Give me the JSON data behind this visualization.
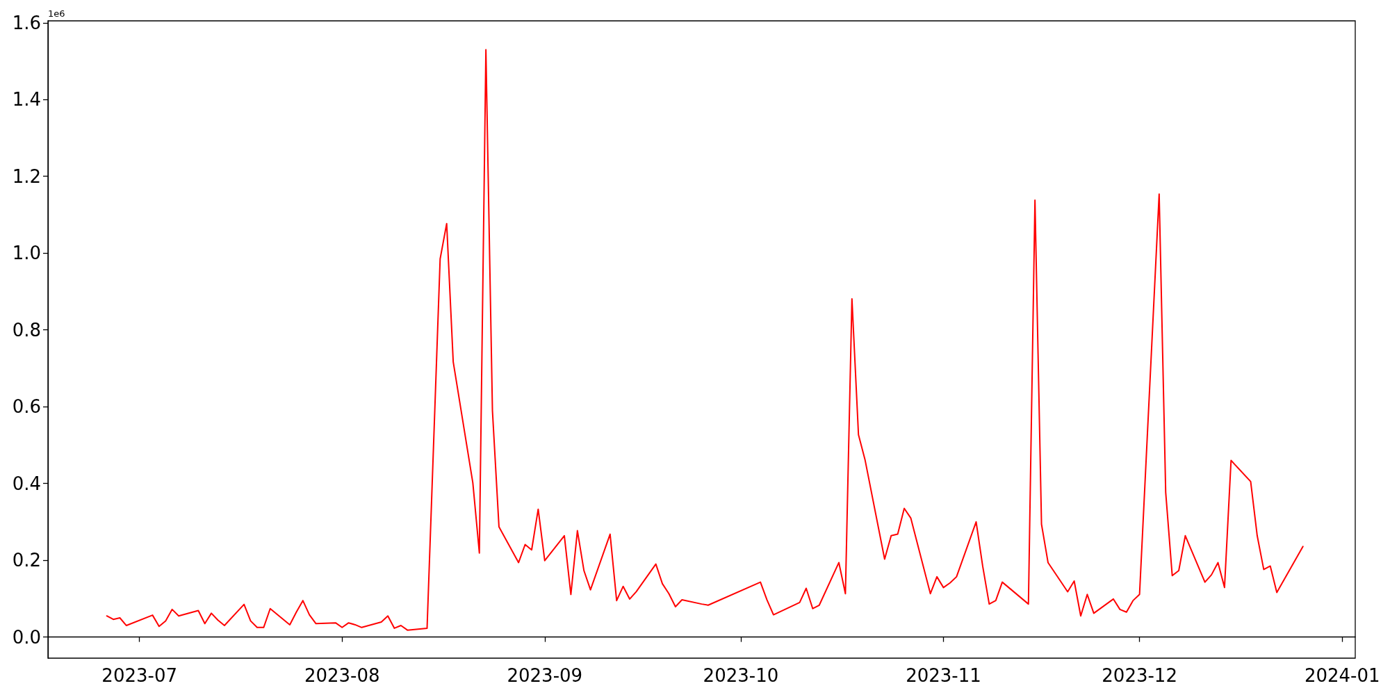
{
  "chart_data": {
    "type": "line",
    "annotations": [
      "1e6"
    ],
    "x": [
      "2023-06-26",
      "2023-06-27",
      "2023-06-28",
      "2023-06-29",
      "2023-07-03",
      "2023-07-04",
      "2023-07-05",
      "2023-07-06",
      "2023-07-07",
      "2023-07-10",
      "2023-07-11",
      "2023-07-12",
      "2023-07-13",
      "2023-07-14",
      "2023-07-17",
      "2023-07-18",
      "2023-07-19",
      "2023-07-20",
      "2023-07-21",
      "2023-07-24",
      "2023-07-25",
      "2023-07-26",
      "2023-07-27",
      "2023-07-28",
      "2023-07-31",
      "2023-08-01",
      "2023-08-02",
      "2023-08-03",
      "2023-08-04",
      "2023-08-07",
      "2023-08-08",
      "2023-08-09",
      "2023-08-10",
      "2023-08-11",
      "2023-08-14",
      "2023-08-16",
      "2023-08-17",
      "2023-08-18",
      "2023-08-21",
      "2023-08-22",
      "2023-08-23",
      "2023-08-24",
      "2023-08-25",
      "2023-08-28",
      "2023-08-29",
      "2023-08-30",
      "2023-08-31",
      "2023-09-01",
      "2023-09-04",
      "2023-09-05",
      "2023-09-06",
      "2023-09-07",
      "2023-09-08",
      "2023-09-11",
      "2023-09-12",
      "2023-09-13",
      "2023-09-14",
      "2023-09-15",
      "2023-09-18",
      "2023-09-19",
      "2023-09-20",
      "2023-09-21",
      "2023-09-22",
      "2023-09-25",
      "2023-09-26",
      "2023-10-04",
      "2023-10-05",
      "2023-10-06",
      "2023-10-10",
      "2023-10-11",
      "2023-10-12",
      "2023-10-13",
      "2023-10-16",
      "2023-10-17",
      "2023-10-18",
      "2023-10-19",
      "2023-10-20",
      "2023-10-23",
      "2023-10-24",
      "2023-10-25",
      "2023-10-26",
      "2023-10-27",
      "2023-10-30",
      "2023-10-31",
      "2023-11-01",
      "2023-11-02",
      "2023-11-03",
      "2023-11-06",
      "2023-11-07",
      "2023-11-08",
      "2023-11-09",
      "2023-11-10",
      "2023-11-14",
      "2023-11-15",
      "2023-11-16",
      "2023-11-17",
      "2023-11-20",
      "2023-11-21",
      "2023-11-22",
      "2023-11-23",
      "2023-11-24",
      "2023-11-27",
      "2023-11-28",
      "2023-11-29",
      "2023-11-30",
      "2023-12-01",
      "2023-12-04",
      "2023-12-05",
      "2023-12-06",
      "2023-12-07",
      "2023-12-08",
      "2023-12-11",
      "2023-12-12",
      "2023-12-13",
      "2023-12-14",
      "2023-12-15",
      "2023-12-18",
      "2023-12-19",
      "2023-12-20",
      "2023-12-21",
      "2023-12-22",
      "2023-12-26"
    ],
    "series": [
      {
        "color": "#ff0000",
        "values": [
          0.055,
          0.046,
          0.05,
          0.03,
          0.057,
          0.028,
          0.042,
          0.072,
          0.055,
          0.069,
          0.035,
          0.062,
          0.044,
          0.03,
          0.085,
          0.042,
          0.025,
          0.025,
          0.074,
          0.032,
          0.065,
          0.095,
          0.058,
          0.035,
          0.037,
          0.025,
          0.037,
          0.032,
          0.025,
          0.039,
          0.055,
          0.023,
          0.03,
          0.018,
          0.023,
          0.985,
          1.077,
          0.717,
          0.402,
          0.219,
          1.53,
          0.59,
          0.287,
          0.194,
          0.241,
          0.227,
          0.333,
          0.199,
          0.264,
          0.111,
          0.277,
          0.173,
          0.123,
          0.268,
          0.095,
          0.132,
          0.099,
          0.118,
          0.19,
          0.139,
          0.113,
          0.079,
          0.097,
          0.086,
          0.083,
          0.143,
          0.097,
          0.058,
          0.09,
          0.127,
          0.074,
          0.083,
          0.194,
          0.113,
          0.881,
          0.527,
          0.462,
          0.203,
          0.264,
          0.268,
          0.335,
          0.31,
          0.113,
          0.157,
          0.129,
          0.141,
          0.157,
          0.3,
          0.185,
          0.086,
          0.095,
          0.143,
          0.086,
          1.138,
          0.294,
          0.194,
          0.118,
          0.146,
          0.055,
          0.111,
          0.062,
          0.099,
          0.072,
          0.065,
          0.095,
          0.111,
          1.154,
          0.377,
          0.16,
          0.173,
          0.264,
          0.143,
          0.162,
          0.194,
          0.129,
          0.46,
          0.405,
          0.264,
          0.176,
          0.185,
          0.116,
          0.236
        ]
      }
    ],
    "xlim": [
      "2023-06-17",
      "2024-01-03"
    ],
    "xticks": [
      "2023-07",
      "2023-08",
      "2023-09",
      "2023-10",
      "2023-11",
      "2023-12",
      "2024-01"
    ],
    "ylim": [
      -0.055,
      1.605
    ],
    "yticks": [
      {
        "value": 0,
        "label": "0.0"
      },
      0.2,
      0.4,
      0.6,
      0.8,
      {
        "value": 1,
        "label": "1.0"
      },
      1.2,
      1.4,
      1.6
    ]
  }
}
